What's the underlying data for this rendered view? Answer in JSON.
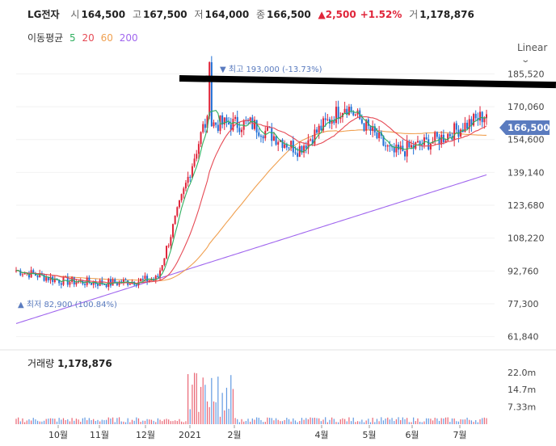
{
  "header": {
    "name": "LG전자",
    "open_label": "시",
    "open": "164,500",
    "high_label": "고",
    "high": "167,500",
    "low_label": "저",
    "low": "164,000",
    "close_label": "종",
    "close": "166,500",
    "change": "▲2,500",
    "change_pct": "+1.52%",
    "volume_label": "거",
    "volume": "1,178,876"
  },
  "ma": {
    "label": "이동평균",
    "p5": "5",
    "p20": "20",
    "p60": "60",
    "p200": "200"
  },
  "scale_mode": "Linear",
  "annotations": {
    "max_text": "▼ 최고 193,000 (-13.73%)",
    "min_text": "▲ 최저 82,900 (100.84%)"
  },
  "price_tag": "166,500",
  "volume_panel": {
    "title": "거래량",
    "value": "1,178,876"
  },
  "colors": {
    "up": "#e0253a",
    "down": "#1f6fd6",
    "ma5": "#2faf5f",
    "ma20": "#e64a55",
    "ma60": "#f0a050",
    "ma200": "#a066ee",
    "tag": "#5a7bbf"
  },
  "chart_data": {
    "type": "candlestick",
    "y_ticks": [
      "185,520",
      "170,060",
      "154,600",
      "139,140",
      "123,680",
      "108,220",
      "92,760",
      "77,300",
      "61,840"
    ],
    "y_tick_values": [
      185520,
      170060,
      154600,
      139140,
      123680,
      108220,
      92760,
      77300,
      61840
    ],
    "ylim": [
      56000,
      199000
    ],
    "x_ticks": [
      "10월",
      "11월",
      "12월",
      "2021",
      "2월",
      "4월",
      "5월",
      "6월",
      "7월"
    ],
    "volume_ticks": [
      "22.0m",
      "14.7m",
      "7.33m"
    ],
    "volume_tick_values": [
      22000000,
      14700000,
      7330000
    ],
    "volume_max": 24000000,
    "max": {
      "value": 193000,
      "pct": "-13.73%",
      "month": "2021-01"
    },
    "min": {
      "value": 82900,
      "pct": "100.84%",
      "month": "2020-09"
    },
    "monthly_closes": [
      {
        "month": "2020-09",
        "close": 93000
      },
      {
        "month": "2020-10",
        "close": 88000
      },
      {
        "month": "2020-11",
        "close": 87000
      },
      {
        "month": "2020-12",
        "close": 89000
      },
      {
        "month": "2021-01",
        "close": 162000
      },
      {
        "month": "2021-02",
        "close": 162000
      },
      {
        "month": "2021-03",
        "close": 150000
      },
      {
        "month": "2021-04",
        "close": 171000
      },
      {
        "month": "2021-05",
        "close": 148000
      },
      {
        "month": "2021-06",
        "close": 155000
      },
      {
        "month": "2021-07",
        "close": 166500
      }
    ],
    "last": {
      "open": 164500,
      "high": 167500,
      "low": 164000,
      "close": 166500,
      "volume": 1178876
    }
  }
}
